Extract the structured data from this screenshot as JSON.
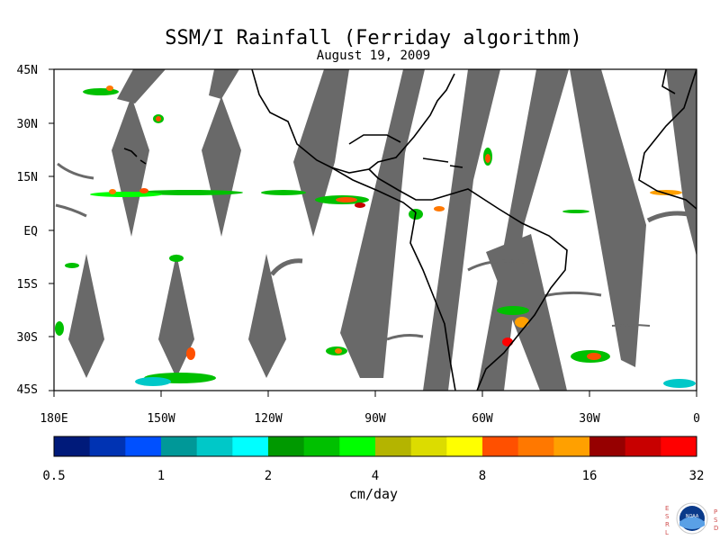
{
  "title": "SSM/I Rainfall (Ferriday algorithm)",
  "date": "August 19, 2009",
  "map": {
    "lat_labels": [
      "45N",
      "30N",
      "15N",
      "EQ",
      "15S",
      "30S",
      "45S"
    ],
    "lon_labels": [
      "180E",
      "150W",
      "120W",
      "90W",
      "60W",
      "30W",
      "0"
    ]
  },
  "colorbar": {
    "unit_label": "cm/day",
    "tick_labels": [
      "0.5",
      "1",
      "2",
      "4",
      "8",
      "16",
      "32"
    ],
    "colors": [
      "#001a7a",
      "#0033b3",
      "#0050ff",
      "#009898",
      "#00c8c8",
      "#00ffff",
      "#009900",
      "#00c000",
      "#00ff00",
      "#b4b400",
      "#dcdc00",
      "#ffff00",
      "#ff5000",
      "#ff7800",
      "#ffa000",
      "#960000",
      "#c80000",
      "#ff0000"
    ]
  },
  "logo": {
    "text": "NOAA",
    "left_letters": [
      "E",
      "S",
      "R",
      "L"
    ],
    "right_letters": [
      "P",
      "S",
      "D"
    ]
  }
}
